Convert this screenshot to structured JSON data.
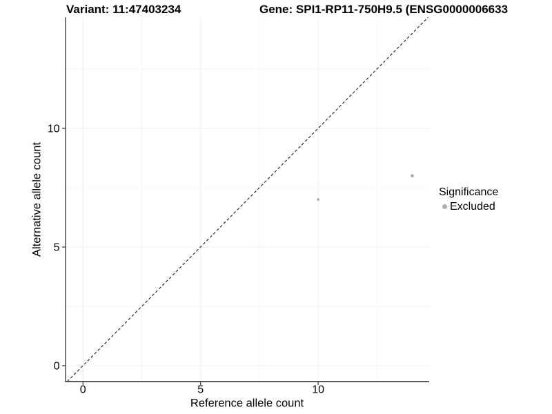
{
  "window": {
    "background": "#ffffff",
    "text_color": "#000000"
  },
  "chart_data": {
    "type": "scatter",
    "title_left": "Variant: 11:47403234",
    "title_right": "Gene: SPI1-RP11-750H9.5 (ENSG0000006633",
    "xlabel": "Reference allele count",
    "ylabel": "Alternative allele count",
    "xlim": [
      -0.74,
      14.72
    ],
    "ylim": [
      -0.67,
      14.68
    ],
    "x_ticks": [
      0,
      5,
      10
    ],
    "y_ticks": [
      0,
      5,
      10
    ],
    "x_minor_ticks": [
      2.5,
      7.5,
      12.5
    ],
    "y_minor_ticks": [
      2.5,
      7.5,
      12.5
    ],
    "grid": true,
    "legend_position": "right",
    "legend_title": "Significance",
    "identity_line": {
      "type": "dashed",
      "slope": 1,
      "intercept": 0,
      "color": "#1a1a1a"
    },
    "series": [
      {
        "name": "Excluded",
        "color": "#acacac",
        "points": [
          {
            "x": 10,
            "y": 7,
            "r": 1.9
          },
          {
            "x": 14,
            "y": 8,
            "r": 2.4
          }
        ]
      }
    ],
    "colors": {
      "grid_major": "#ececec",
      "grid_minor": "#f6f6f6",
      "axis_line": "#404040",
      "tick": "#333333",
      "tick_label": "#000000"
    }
  }
}
